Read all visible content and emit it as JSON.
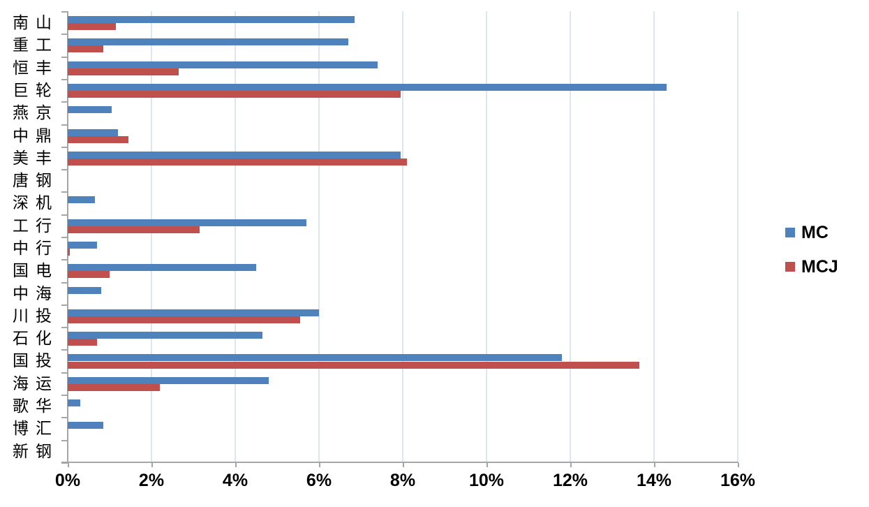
{
  "chart_data": {
    "type": "bar",
    "orientation": "horizontal",
    "title": "",
    "xlabel": "",
    "ylabel": "",
    "categories": [
      "南山",
      "重工",
      "恒丰",
      "巨轮",
      "燕京",
      "中鼎",
      "美丰",
      "唐钢",
      "深机",
      "工行",
      "中行",
      "国电",
      "中海",
      "川投",
      "石化",
      "国投",
      "海运",
      "歌华",
      "博汇",
      "新钢"
    ],
    "series": [
      {
        "name": "MC",
        "color": "#4f81bd",
        "values": [
          6.85,
          6.7,
          7.4,
          14.3,
          1.05,
          1.2,
          7.95,
          0,
          0.65,
          5.7,
          0.7,
          4.5,
          0.8,
          6.0,
          4.65,
          11.8,
          4.8,
          0.3,
          0.85,
          0
        ]
      },
      {
        "name": "MCJ",
        "color": "#c0504d",
        "values": [
          1.15,
          0.85,
          2.65,
          7.95,
          0,
          1.45,
          8.1,
          0,
          0,
          3.15,
          0.05,
          1.0,
          0,
          5.55,
          0.7,
          13.65,
          2.2,
          0,
          0,
          0
        ]
      }
    ],
    "x_ticks": [
      "0%",
      "2%",
      "4%",
      "6%",
      "8%",
      "10%",
      "12%",
      "14%",
      "16%"
    ],
    "xlim": [
      0,
      16
    ],
    "grid": "vertical-only",
    "legend_position": "right",
    "colors": {
      "gridline": "#dce6f1",
      "axis": "#a6a6a6",
      "tick_text": "#000000"
    }
  }
}
